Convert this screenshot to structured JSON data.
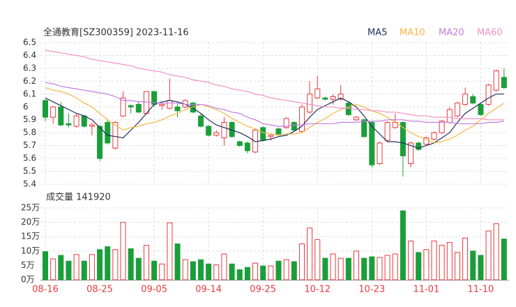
{
  "chart_data": [
    {
      "type": "candlestick",
      "title": "全通教育[SZ300359] 2023-11-16",
      "up_color": "#e8383d",
      "down_color": "#1a9e3a",
      "open": [
        6.05,
        5.92,
        6.0,
        5.87,
        5.85,
        5.93,
        5.85,
        5.85,
        5.88,
        5.68,
        5.93,
        6.01,
        6.02,
        5.95,
        6.12,
        6.01,
        5.99,
        6.0,
        6.0,
        6.03,
        5.93,
        5.85,
        5.78,
        5.76,
        5.88,
        5.73,
        5.72,
        5.65,
        5.84,
        5.77,
        5.83,
        5.84,
        5.88,
        5.81,
        5.96,
        6.07,
        6.07,
        6.06,
        6.06,
        6.03,
        5.9,
        5.9,
        5.88,
        5.56,
        5.74,
        5.84,
        5.88,
        5.56,
        5.72,
        5.71,
        5.75,
        5.8,
        5.88,
        5.93,
        6.02,
        6.08,
        6.02,
        6.02,
        6.13,
        6.23
      ],
      "high": [
        6.06,
        6.01,
        6.04,
        5.95,
        5.95,
        5.94,
        5.88,
        5.86,
        5.9,
        5.89,
        6.12,
        6.02,
        6.04,
        6.12,
        6.12,
        6.03,
        6.22,
        6.03,
        6.06,
        6.04,
        5.95,
        5.86,
        5.82,
        5.92,
        5.89,
        5.74,
        5.73,
        5.83,
        5.85,
        5.79,
        5.84,
        5.92,
        5.89,
        6.02,
        6.2,
        6.24,
        6.08,
        6.1,
        6.17,
        6.04,
        5.93,
        5.91,
        5.89,
        5.73,
        5.89,
        5.95,
        5.89,
        5.73,
        5.73,
        5.77,
        5.81,
        5.9,
        6.0,
        6.04,
        6.15,
        6.1,
        6.03,
        6.18,
        6.29,
        6.3
      ],
      "low": [
        5.89,
        5.87,
        5.85,
        5.84,
        5.84,
        5.84,
        5.78,
        5.58,
        5.71,
        5.67,
        5.92,
        5.95,
        5.95,
        5.94,
        6.0,
        5.98,
        5.98,
        5.92,
        5.99,
        5.95,
        5.84,
        5.77,
        5.77,
        5.7,
        5.76,
        5.69,
        5.64,
        5.64,
        5.73,
        5.74,
        5.78,
        5.83,
        5.81,
        5.8,
        5.95,
        6.06,
        6.05,
        6.02,
        6.05,
        5.93,
        5.89,
        5.76,
        5.53,
        5.55,
        5.73,
        5.83,
        5.46,
        5.53,
        5.66,
        5.7,
        5.74,
        5.79,
        5.87,
        5.92,
        6.01,
        6.02,
        5.93,
        6.01,
        6.12,
        6.14
      ],
      "close": [
        5.92,
        6.0,
        5.86,
        5.86,
        5.93,
        5.85,
        5.86,
        5.6,
        5.72,
        5.88,
        6.07,
        6.0,
        5.96,
        6.12,
        6.02,
        6.02,
        6.05,
        5.97,
        6.05,
        5.96,
        5.85,
        5.78,
        5.8,
        5.88,
        5.77,
        5.7,
        5.66,
        5.82,
        5.74,
        5.78,
        5.79,
        5.91,
        5.82,
        6.0,
        6.1,
        6.14,
        6.06,
        6.08,
        6.1,
        5.94,
        5.92,
        5.77,
        5.55,
        5.72,
        5.88,
        5.88,
        5.62,
        5.72,
        5.67,
        5.76,
        5.8,
        5.89,
        5.98,
        6.03,
        6.1,
        6.03,
        5.94,
        6.17,
        6.28,
        6.15
      ],
      "series": [
        {
          "name": "MA5",
          "color": "#1f2d5c",
          "values": [
            6.07,
            6.04,
            6.01,
            5.98,
            5.95,
            5.93,
            5.9,
            5.84,
            5.78,
            5.77,
            5.76,
            5.82,
            5.88,
            5.95,
            6.02,
            6.04,
            6.05,
            6.04,
            6.02,
            5.99,
            5.95,
            5.9,
            5.86,
            5.84,
            5.82,
            5.8,
            5.77,
            5.73,
            5.74,
            5.75,
            5.77,
            5.78,
            5.81,
            5.85,
            5.92,
            5.98,
            6.01,
            6.04,
            6.07,
            6.04,
            6.0,
            5.93,
            5.85,
            5.79,
            5.73,
            5.73,
            5.72,
            5.7,
            5.68,
            5.7,
            5.72,
            5.76,
            5.8,
            5.88,
            5.95,
            5.99,
            6.03,
            6.07,
            6.1,
            6.1
          ]
        },
        {
          "name": "MA10",
          "color": "#f4b63f",
          "values": [
            6.15,
            6.13,
            6.12,
            6.1,
            6.07,
            6.03,
            6.0,
            5.95,
            5.9,
            5.86,
            5.82,
            5.84,
            5.85,
            5.87,
            5.88,
            5.9,
            5.93,
            5.95,
            5.98,
            6.0,
            6.02,
            6.0,
            5.98,
            5.95,
            5.91,
            5.88,
            5.85,
            5.83,
            5.8,
            5.79,
            5.78,
            5.79,
            5.79,
            5.8,
            5.84,
            5.88,
            5.91,
            5.95,
            5.98,
            6.0,
            6.02,
            6.0,
            5.97,
            5.95,
            5.92,
            5.88,
            5.84,
            5.8,
            5.77,
            5.75,
            5.72,
            5.73,
            5.75,
            5.78,
            5.82,
            5.85,
            5.9,
            5.95,
            5.99,
            6.03
          ]
        },
        {
          "name": "MA20",
          "color": "#c07de0",
          "values": [
            6.19,
            6.18,
            6.16,
            6.15,
            6.14,
            6.13,
            6.12,
            6.11,
            6.1,
            6.08,
            6.05,
            6.05,
            6.04,
            6.04,
            6.03,
            6.03,
            6.03,
            6.03,
            6.02,
            6.02,
            6.02,
            6.01,
            5.99,
            5.98,
            5.96,
            5.95,
            5.92,
            5.9,
            5.87,
            5.86,
            5.85,
            5.85,
            5.86,
            5.86,
            5.87,
            5.87,
            5.87,
            5.87,
            5.88,
            5.88,
            5.88,
            5.89,
            5.89,
            5.89,
            5.9,
            5.9,
            5.9,
            5.89,
            5.89,
            5.88,
            5.88,
            5.88,
            5.88,
            5.87,
            5.87,
            5.87,
            5.87,
            5.88,
            5.88,
            5.89
          ]
        },
        {
          "name": "MA60",
          "color": "#f290c4",
          "values": [
            6.44,
            6.43,
            6.42,
            6.41,
            6.4,
            6.39,
            6.37,
            6.36,
            6.35,
            6.34,
            6.33,
            6.32,
            6.3,
            6.29,
            6.28,
            6.27,
            6.25,
            6.24,
            6.23,
            6.21,
            6.2,
            6.19,
            6.17,
            6.16,
            6.14,
            6.13,
            6.12,
            6.1,
            6.09,
            6.07,
            6.06,
            6.05,
            6.04,
            6.03,
            6.02,
            6.01,
            6.0,
            6.0,
            5.99,
            5.99,
            5.98,
            5.98,
            5.97,
            5.97,
            5.96,
            5.96,
            5.95,
            5.94,
            5.93,
            5.93,
            5.92,
            5.92,
            5.92,
            5.91,
            5.91,
            5.91,
            5.91,
            5.9,
            5.9,
            5.9
          ]
        }
      ],
      "ylim": [
        5.4,
        6.5
      ],
      "yticks": [
        6.5,
        6.4,
        6.3,
        6.2,
        6.1,
        6,
        5.9,
        5.8,
        5.7,
        5.6,
        5.5,
        5.4
      ],
      "grid": true
    },
    {
      "type": "bar",
      "title": "成交量 141920",
      "categories": [
        "08-16",
        null,
        null,
        null,
        null,
        null,
        null,
        "08-25",
        null,
        null,
        null,
        null,
        null,
        null,
        "09-05",
        null,
        null,
        null,
        null,
        null,
        null,
        "09-14",
        null,
        null,
        null,
        null,
        null,
        null,
        "09-25",
        null,
        null,
        null,
        null,
        null,
        null,
        "10-12",
        null,
        null,
        null,
        null,
        null,
        null,
        "10-23",
        null,
        null,
        null,
        null,
        null,
        null,
        "11-01",
        null,
        null,
        null,
        null,
        null,
        null,
        "11-10",
        null,
        null,
        null
      ],
      "values": [
        9.8,
        7.3,
        8.5,
        6.5,
        8.8,
        6.5,
        8.8,
        10.5,
        11.5,
        10.5,
        20,
        10.8,
        7.5,
        12,
        6.5,
        5.5,
        19.8,
        12.5,
        7,
        6.3,
        7,
        5.5,
        5.2,
        9,
        5.5,
        3.5,
        4.3,
        5.8,
        4.8,
        4.8,
        6.5,
        7,
        6.3,
        12.5,
        18,
        14,
        7.5,
        9,
        7.5,
        7.5,
        10,
        7.5,
        8,
        7.8,
        8.5,
        9,
        24,
        13.5,
        9.5,
        10.5,
        13.5,
        12,
        13,
        9.5,
        14.5,
        10,
        8.5,
        17,
        19.5,
        14.192
      ],
      "ylim": [
        0,
        25
      ],
      "yticks": [
        {
          "value": 25,
          "label": "25万"
        },
        {
          "value": 20,
          "label": "20万"
        },
        {
          "value": 15,
          "label": "15万"
        },
        {
          "value": 10,
          "label": "10万"
        },
        {
          "value": 5,
          "label": "5万"
        },
        {
          "value": 0,
          "label": "0万"
        }
      ],
      "grid": true
    }
  ]
}
